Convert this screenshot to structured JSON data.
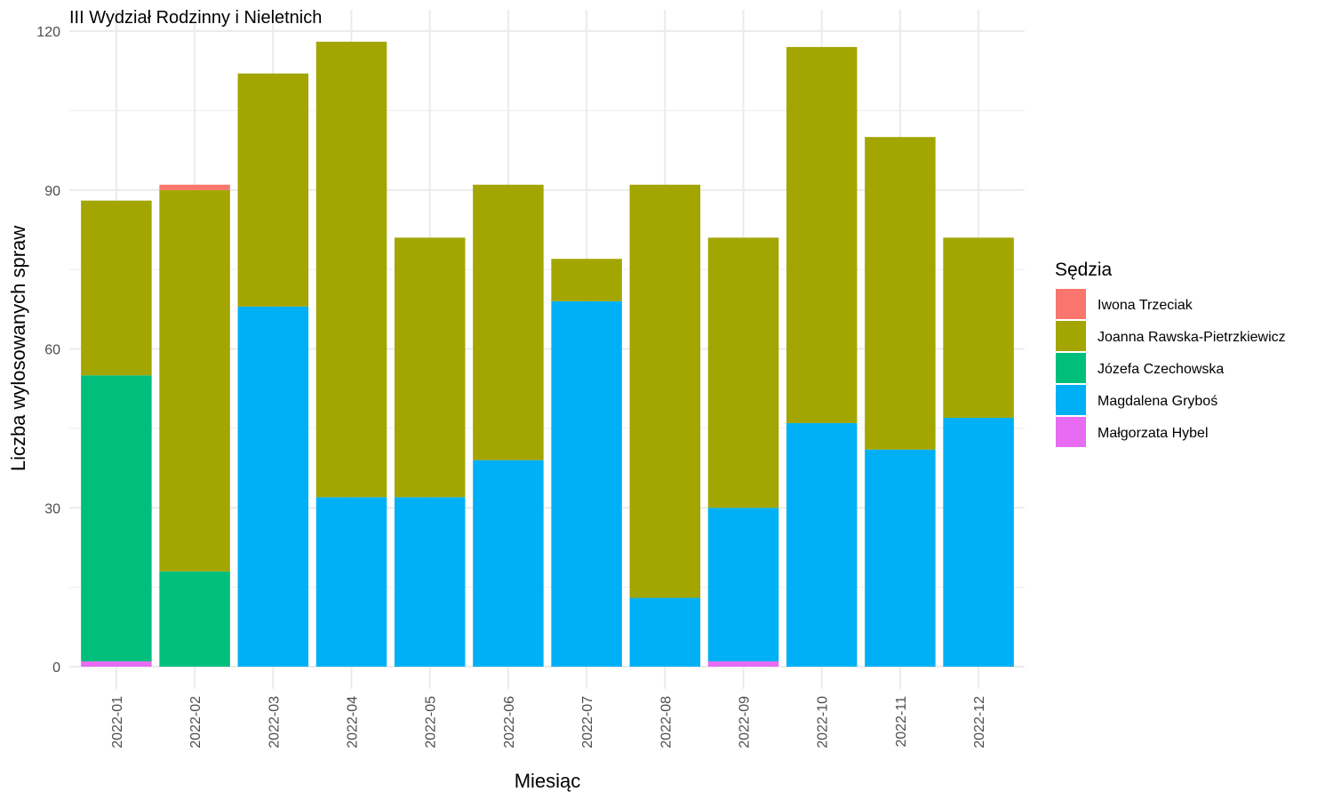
{
  "chart_data": {
    "type": "bar",
    "stacked": true,
    "title": "III Wydział Rodzinny i Nieletnich",
    "xlabel": "Miesiąc",
    "ylabel": "Liczba wylosowanych spraw",
    "ylim": [
      0,
      120
    ],
    "yticks": [
      0,
      30,
      60,
      90,
      120
    ],
    "grid": true,
    "legend_title": "Sędzia",
    "legend_position": "right",
    "categories": [
      "2022-01",
      "2022-02",
      "2022-03",
      "2022-04",
      "2022-05",
      "2022-06",
      "2022-07",
      "2022-08",
      "2022-09",
      "2022-10",
      "2022-11",
      "2022-12"
    ],
    "series": [
      {
        "name": "Iwona Trzeciak",
        "color": "#F8766D",
        "values": [
          0,
          1,
          0,
          0,
          0,
          0,
          0,
          0,
          0,
          0,
          0,
          0
        ]
      },
      {
        "name": "Joanna Rawska-Pietrzkiewicz",
        "color": "#A3A500",
        "values": [
          33,
          72,
          44,
          86,
          49,
          52,
          8,
          78,
          51,
          71,
          59,
          34
        ]
      },
      {
        "name": "Józefa Czechowska",
        "color": "#00BF7D",
        "values": [
          54,
          18,
          0,
          0,
          0,
          0,
          0,
          0,
          0,
          0,
          0,
          0
        ]
      },
      {
        "name": "Magdalena Gryboś",
        "color": "#00B0F6",
        "values": [
          0,
          0,
          68,
          32,
          32,
          39,
          69,
          13,
          29,
          46,
          41,
          47
        ]
      },
      {
        "name": "Małgorzata Hybel",
        "color": "#E76BF3",
        "values": [
          1,
          0,
          0,
          0,
          0,
          0,
          0,
          0,
          1,
          0,
          0,
          0
        ]
      }
    ]
  }
}
